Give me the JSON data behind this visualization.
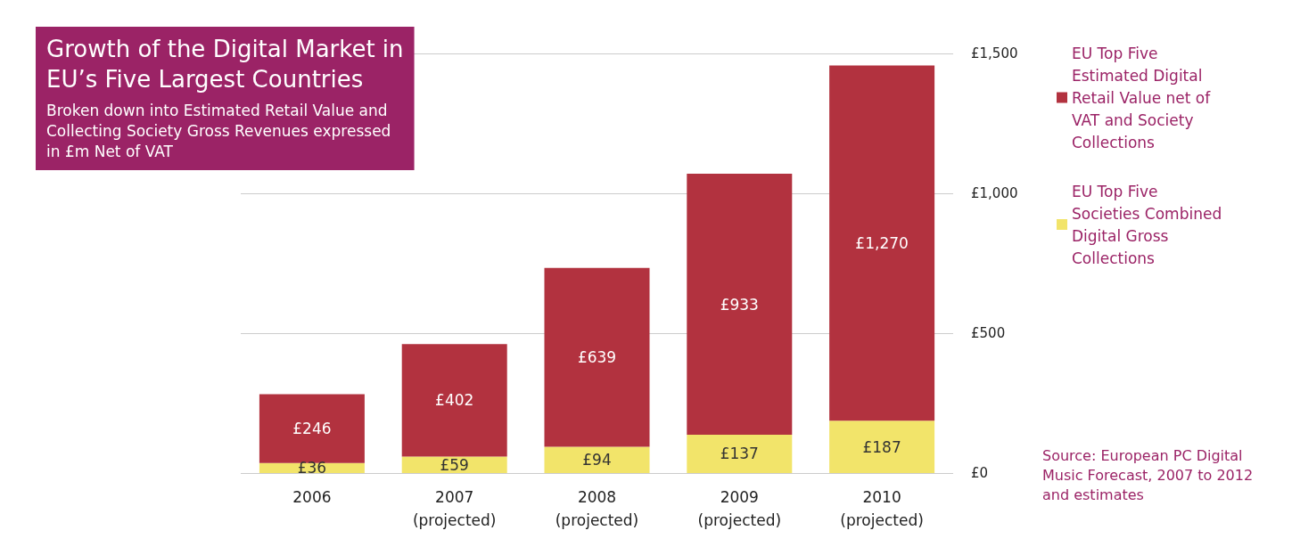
{
  "chart_data": {
    "type": "bar",
    "title": "Growth of the Digital Market in\nEU’s Five Largest Countries",
    "subtitle": "Broken down into Estimated Retail Value and\nCollecting Society Gross Revenues expressed\nin £m Net of VAT",
    "categories": [
      "2006",
      "2007\n(projected)",
      "2008\n(projected)",
      "2009\n(projected)",
      "2010\n(projected)"
    ],
    "stacked": true,
    "series": [
      {
        "name": "EU Top Five Societies Combined Digital Gross Collections",
        "color": "#f2e46a",
        "values": [
          36,
          59,
          94,
          137,
          187
        ],
        "value_labels": [
          "£36",
          "£59",
          "£94",
          "£137",
          "£187"
        ]
      },
      {
        "name": "EU Top Five Estimated Digital Retail Value net of VAT and Society Collections",
        "color": "#b2323f",
        "values": [
          246,
          402,
          639,
          933,
          1270
        ],
        "value_labels": [
          "£246",
          "£402",
          "£639",
          "£933",
          "£1,270"
        ]
      }
    ],
    "ylim": [
      0,
      1500
    ],
    "yticks": [
      {
        "value": 0,
        "label": "£0"
      },
      {
        "value": 500,
        "label": "£500"
      },
      {
        "value": 1000,
        "label": "£1,000"
      },
      {
        "value": 1500,
        "label": "£1,500"
      }
    ],
    "grid": "y",
    "legend": "top right",
    "annotations": [
      "Source: European PC Digital Music Forecast, 2007 to 2012 and estimates"
    ]
  }
}
